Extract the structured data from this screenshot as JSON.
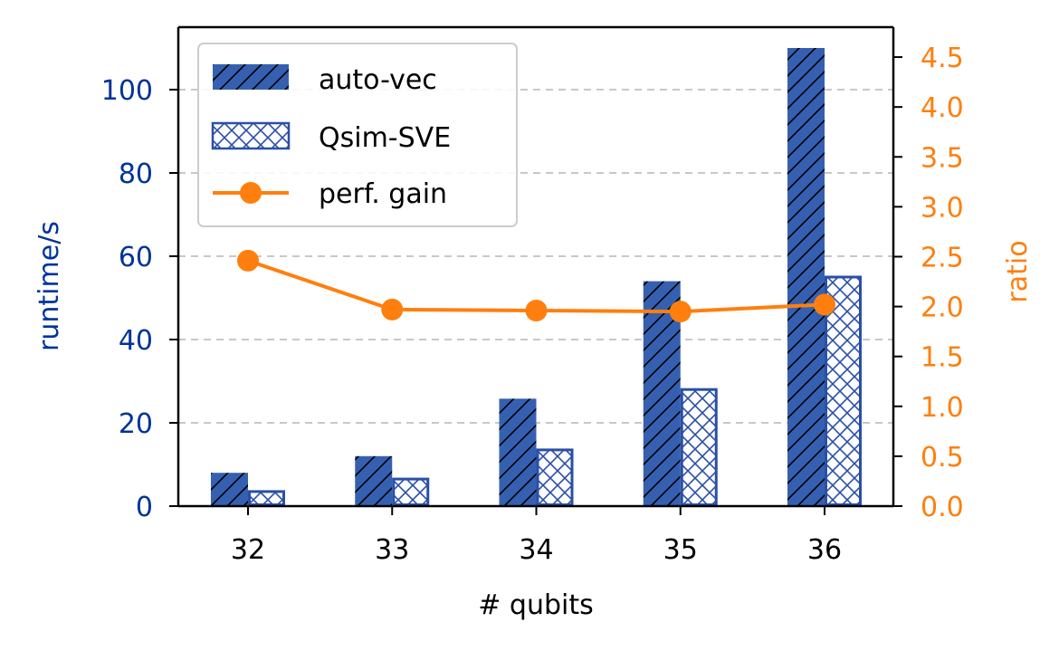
{
  "chart_data": {
    "type": "bar",
    "title": "",
    "xlabel": "# qubits",
    "ylabel": "runtime/s",
    "y2label": "ratio",
    "categories": [
      "32",
      "33",
      "34",
      "35",
      "36"
    ],
    "ylim": [
      0,
      115
    ],
    "y2lim": [
      0,
      4.8
    ],
    "yticks": [
      "0",
      "20",
      "40",
      "60",
      "80",
      "100"
    ],
    "y2ticks": [
      "0.0",
      "0.5",
      "1.0",
      "1.5",
      "2.0",
      "2.5",
      "3.0",
      "3.5",
      "4.0",
      "4.5"
    ],
    "grid": "horizontal dashed",
    "legend_position": "top-left",
    "series": [
      {
        "name": "auto-vec",
        "kind": "bar",
        "axis": "left",
        "hatch": "diagonal",
        "values": [
          8,
          12,
          25.8,
          54,
          110
        ]
      },
      {
        "name": "Qsim-SVE",
        "kind": "bar",
        "axis": "left",
        "hatch": "crosshatch",
        "values": [
          3.5,
          6.5,
          13.5,
          28,
          55
        ]
      },
      {
        "name": "perf. gain",
        "kind": "line",
        "axis": "right",
        "values": [
          2.46,
          1.97,
          1.96,
          1.95,
          2.02
        ]
      }
    ],
    "colors": {
      "bar": "#3560b1",
      "bar_edge": "#2a4fa8",
      "line": "#ff7f0e",
      "left_axis": "#003399",
      "right_axis": "#ff7f0e",
      "grid": "#c8c8c8"
    }
  }
}
